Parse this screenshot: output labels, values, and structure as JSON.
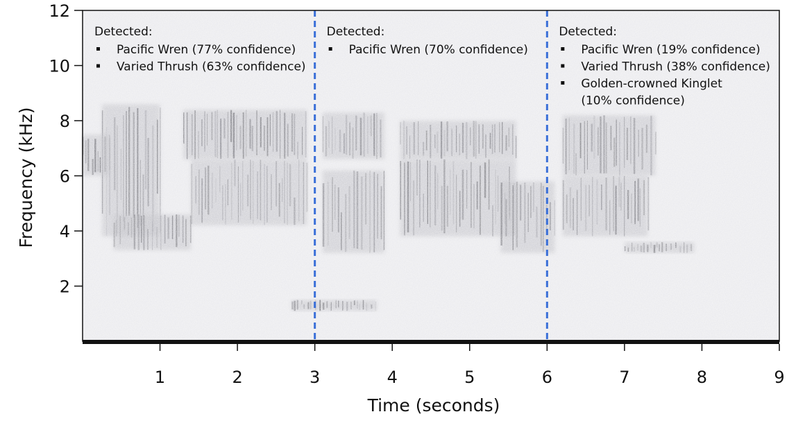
{
  "chart_data": {
    "type": "spectrogram",
    "xlabel": "Time (seconds)",
    "ylabel": "Frequency (kHz)",
    "xlim": [
      0,
      9
    ],
    "ylim": [
      0,
      12
    ],
    "xticks": [
      1,
      2,
      3,
      4,
      5,
      6,
      7,
      8,
      9
    ],
    "yticks": [
      2,
      4,
      6,
      8,
      10,
      12
    ],
    "segment_boundaries": [
      3,
      6
    ],
    "boundary_color": "#3a6fd8",
    "segments": [
      {
        "start": 0,
        "end": 3,
        "header": "Detected:",
        "detections": [
          {
            "label": "Pacific Wren (77% confidence)",
            "species": "Pacific Wren",
            "confidence": 77
          },
          {
            "label": "Varied Thrush (63% confidence)",
            "species": "Varied Thrush",
            "confidence": 63
          }
        ]
      },
      {
        "start": 3,
        "end": 6,
        "header": "Detected:",
        "detections": [
          {
            "label": "Pacific Wren (70% confidence)",
            "species": "Pacific Wren",
            "confidence": 70
          }
        ]
      },
      {
        "start": 6,
        "end": 9,
        "header": "Detected:",
        "detections": [
          {
            "label": "Pacific Wren (19% confidence)",
            "species": "Pacific Wren",
            "confidence": 19
          },
          {
            "label": "Varied Thrush (38% confidence)",
            "species": "Varied Thrush",
            "confidence": 38
          },
          {
            "label": [
              "Golden-crowned Kinglet",
              "(10% confidence)"
            ],
            "species": "Golden-crowned Kinglet",
            "confidence": 10
          }
        ]
      }
    ],
    "energy_regions": [
      {
        "t0": 0.25,
        "t1": 1.0,
        "f0": 3.8,
        "f1": 8.6
      },
      {
        "t0": 0.0,
        "t1": 0.35,
        "f0": 6.0,
        "f1": 7.5
      },
      {
        "t0": 1.3,
        "t1": 2.9,
        "f0": 6.6,
        "f1": 8.4
      },
      {
        "t0": 1.4,
        "t1": 2.9,
        "f0": 4.2,
        "f1": 6.6
      },
      {
        "t0": 0.4,
        "t1": 1.4,
        "f0": 3.3,
        "f1": 4.6
      },
      {
        "t0": 3.1,
        "t1": 3.9,
        "f0": 6.6,
        "f1": 8.3
      },
      {
        "t0": 3.1,
        "t1": 3.9,
        "f0": 3.2,
        "f1": 6.2
      },
      {
        "t0": 4.1,
        "t1": 5.6,
        "f0": 6.6,
        "f1": 8.0
      },
      {
        "t0": 4.1,
        "t1": 5.6,
        "f0": 3.8,
        "f1": 6.6
      },
      {
        "t0": 5.4,
        "t1": 6.1,
        "f0": 3.2,
        "f1": 5.8
      },
      {
        "t0": 6.2,
        "t1": 7.4,
        "f0": 6.0,
        "f1": 8.2
      },
      {
        "t0": 6.2,
        "t1": 7.3,
        "f0": 3.8,
        "f1": 6.0
      },
      {
        "t0": 7.0,
        "t1": 7.9,
        "f0": 3.2,
        "f1": 3.6
      },
      {
        "t0": 2.7,
        "t1": 3.8,
        "f0": 1.1,
        "f1": 1.5
      }
    ]
  }
}
